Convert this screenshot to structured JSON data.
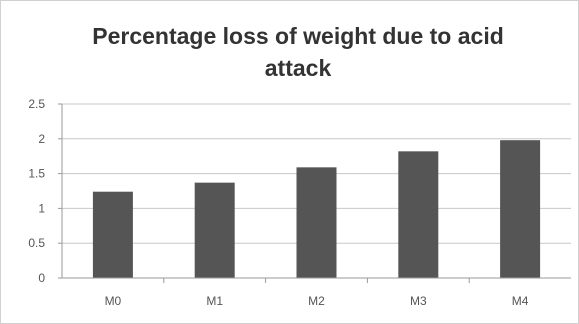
{
  "chart_data": {
    "type": "bar",
    "title": [
      "Percentage loss of weight due to acid",
      "attack"
    ],
    "categories": [
      "M0",
      "M1",
      "M2",
      "M3",
      "M4"
    ],
    "values": [
      1.24,
      1.37,
      1.59,
      1.82,
      1.98
    ],
    "ylim": [
      0,
      2.5
    ],
    "yticks": [
      "0",
      "0.5",
      "1",
      "1.5",
      "2",
      "2.5"
    ],
    "grid": true,
    "legend": "none",
    "bar_color": "#555555"
  }
}
